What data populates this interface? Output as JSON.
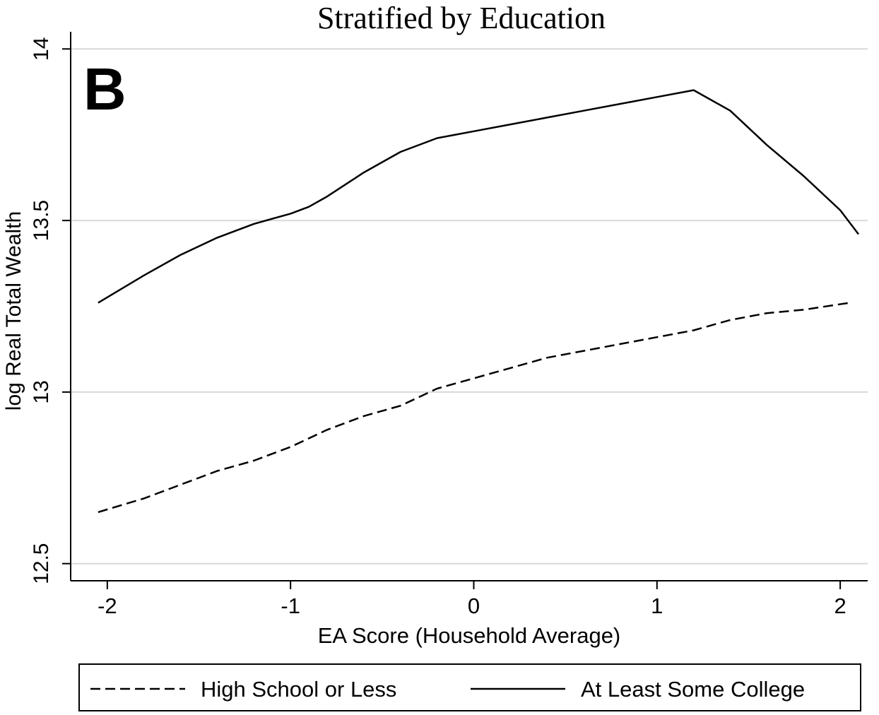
{
  "chart_data": {
    "type": "line",
    "title": "Stratified by Education",
    "panel_label": "B",
    "xlabel": "EA Score (Household Average)",
    "ylabel": "log Real Total Wealth",
    "xlim": [
      -2.2,
      2.15
    ],
    "ylim": [
      12.45,
      14.05
    ],
    "x_ticks": [
      -2,
      -1,
      0,
      1,
      2
    ],
    "x_tick_labels": [
      "-2",
      "-1",
      "0",
      "1",
      "2"
    ],
    "y_ticks": [
      12.5,
      13,
      13.5,
      14
    ],
    "y_tick_labels": [
      "12.5",
      "13",
      "13.5",
      "14"
    ],
    "grid": "horizontal",
    "legend_position": "bottom",
    "series": [
      {
        "name": "High School or Less",
        "style": "dashed",
        "color": "#000000",
        "x": [
          -2.05,
          -1.8,
          -1.6,
          -1.4,
          -1.2,
          -1.0,
          -0.8,
          -0.6,
          -0.4,
          -0.2,
          0.0,
          0.2,
          0.4,
          0.6,
          0.8,
          1.0,
          1.2,
          1.4,
          1.6,
          1.8,
          2.05
        ],
        "y": [
          12.65,
          12.69,
          12.73,
          12.77,
          12.8,
          12.84,
          12.89,
          12.93,
          12.96,
          13.01,
          13.04,
          13.07,
          13.1,
          13.12,
          13.14,
          13.16,
          13.18,
          13.21,
          13.23,
          13.24,
          13.26
        ]
      },
      {
        "name": "At Least Some College",
        "style": "solid",
        "color": "#000000",
        "x": [
          -2.05,
          -1.8,
          -1.6,
          -1.4,
          -1.2,
          -1.0,
          -0.9,
          -0.8,
          -0.6,
          -0.4,
          -0.2,
          0.0,
          0.2,
          0.4,
          0.6,
          0.8,
          1.0,
          1.2,
          1.4,
          1.6,
          1.8,
          2.0,
          2.1
        ],
        "y": [
          13.26,
          13.34,
          13.4,
          13.45,
          13.49,
          13.52,
          13.54,
          13.57,
          13.64,
          13.7,
          13.74,
          13.76,
          13.78,
          13.8,
          13.82,
          13.84,
          13.86,
          13.88,
          13.82,
          13.72,
          13.63,
          13.53,
          13.46
        ]
      }
    ]
  }
}
